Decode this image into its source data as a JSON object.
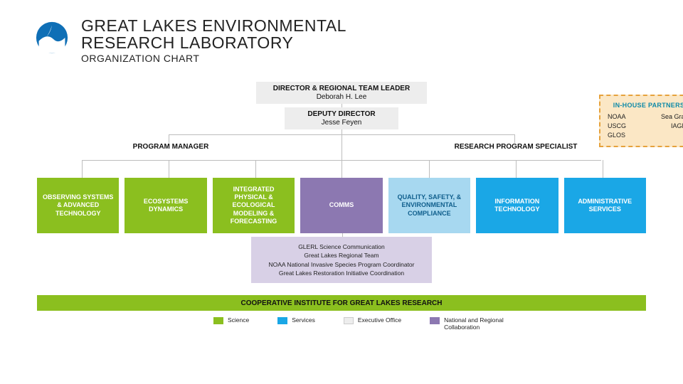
{
  "colors": {
    "science": "#8bbf1f",
    "services": "#1aa7e6",
    "exec": "#ededed",
    "collab": "#8c78b1",
    "collab_light": "#d8d0e6",
    "qse": "#a7d8f0",
    "partners_bg": "#fbe7c5",
    "connector": "#bdbdbd"
  },
  "header": {
    "line1": "GREAT LAKES ENVIRONMENTAL",
    "line2": "RESEARCH LABORATORY",
    "sub": "ORGANIZATION CHART"
  },
  "director": {
    "title": "DIRECTOR & REGIONAL TEAM LEADER",
    "name": "Deborah H. Lee"
  },
  "deputy": {
    "title": "DEPUTY DIRECTOR",
    "name": "Jesse Feyen"
  },
  "program_manager": "PROGRAM MANAGER",
  "research_specialist": "RESEARCH PROGRAM SPECIALIST",
  "departments": [
    {
      "label": "OBSERVING SYSTEMS & ADVANCED TECHNOLOGY",
      "color_key": "science",
      "text": "#ffffff"
    },
    {
      "label": "ECOSYSTEMS DYNAMICS",
      "color_key": "science",
      "text": "#ffffff"
    },
    {
      "label": "INTEGRATED PHYSICAL & ECOLOGICAL MODELING  & FORECASTING",
      "color_key": "science",
      "text": "#ffffff"
    },
    {
      "label": "COMMS",
      "color_key": "collab",
      "text": "#ffffff"
    },
    {
      "label": "QUALITY, SAFETY, & ENVIRONMENTAL COMPLIANCE",
      "color_key": "qse",
      "text": "#0f5e8c"
    },
    {
      "label": "INFORMATION TECHNOLOGY",
      "color_key": "services",
      "text": "#ffffff"
    },
    {
      "label": "ADMINISTRATIVE SERVICES",
      "color_key": "services",
      "text": "#ffffff"
    }
  ],
  "comms_detail": [
    "GLERL Science Communication",
    "Great Lakes Regional Team",
    "NOAA National Invasive Species Program Coordinator",
    "Great Lakes Restoration Initiative Coordination"
  ],
  "coop_bar": "COOPERATIVE INSTITUTE FOR GREAT LAKES RESEARCH",
  "legend": [
    {
      "label": "Science",
      "color_key": "science"
    },
    {
      "label": "Services",
      "color_key": "services"
    },
    {
      "label": "Executive Office",
      "color_key": "exec"
    },
    {
      "label": "National and Regional Collaboration",
      "color_key": "collab"
    }
  ],
  "partners": {
    "title": "IN-HOUSE PARTNERS",
    "rows": [
      [
        "NOAA",
        "Sea Grant"
      ],
      [
        "USCG",
        "IAGLR"
      ],
      [
        "GLOS",
        ""
      ]
    ]
  }
}
